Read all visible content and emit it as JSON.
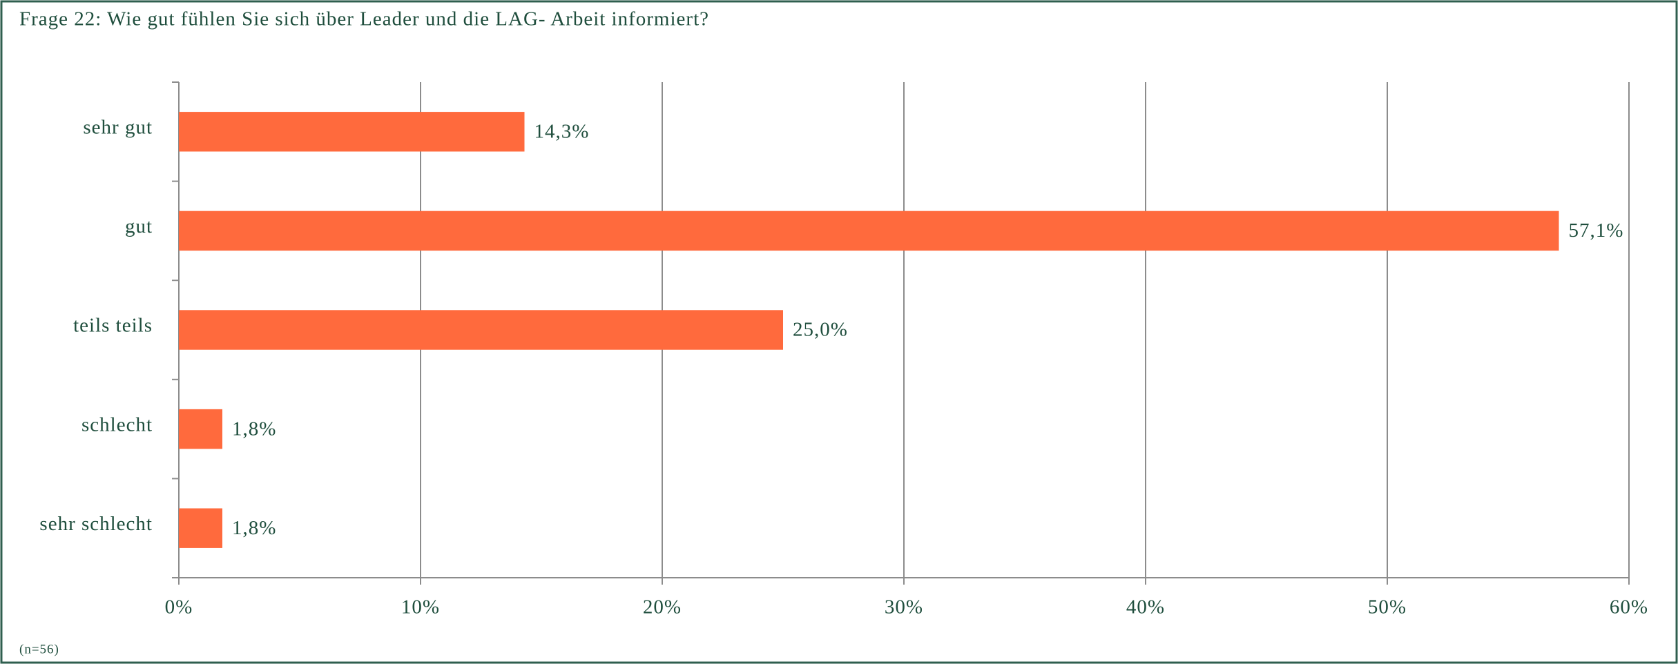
{
  "chart_data": {
    "type": "hbar",
    "title": "Frage 22: Wie gut fühlen Sie sich über Leader und die LAG- Arbeit informiert?",
    "categories": [
      "sehr gut",
      "gut",
      "teils teils",
      "schlecht",
      "sehr schlecht"
    ],
    "values": [
      14.3,
      57.1,
      25.0,
      1.8,
      1.8
    ],
    "value_labels": [
      "14,3%",
      "57,1%",
      "25,0%",
      "1,8%",
      "1,8%"
    ],
    "color": "#ff6a3d",
    "xlim": [
      0,
      60
    ],
    "xticks": [
      {
        "value": 0,
        "label": "0%"
      },
      {
        "value": 10,
        "label": "10%"
      },
      {
        "value": 20,
        "label": "20%"
      },
      {
        "value": 30,
        "label": "30%"
      },
      {
        "value": 40,
        "label": "40%"
      },
      {
        "value": 50,
        "label": "50%"
      },
      {
        "value": 60,
        "label": "60%"
      }
    ],
    "grid": true,
    "note": "(n=56)"
  }
}
